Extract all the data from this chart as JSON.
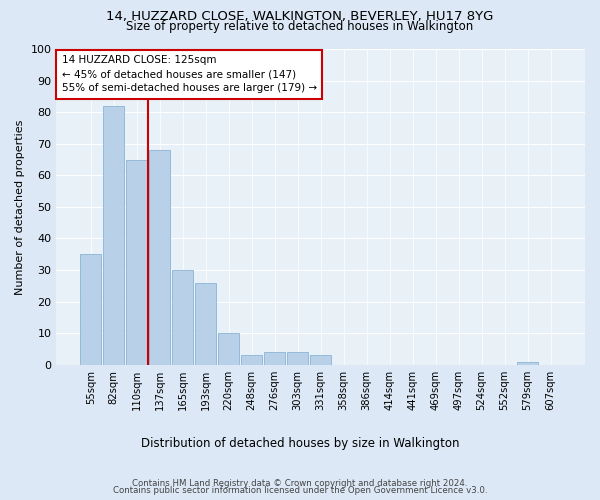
{
  "title": "14, HUZZARD CLOSE, WALKINGTON, BEVERLEY, HU17 8YG",
  "subtitle": "Size of property relative to detached houses in Walkington",
  "xlabel": "Distribution of detached houses by size in Walkington",
  "ylabel": "Number of detached properties",
  "bar_labels": [
    "55sqm",
    "82sqm",
    "110sqm",
    "137sqm",
    "165sqm",
    "193sqm",
    "220sqm",
    "248sqm",
    "276sqm",
    "303sqm",
    "331sqm",
    "358sqm",
    "386sqm",
    "414sqm",
    "441sqm",
    "469sqm",
    "497sqm",
    "524sqm",
    "552sqm",
    "579sqm",
    "607sqm"
  ],
  "bar_values": [
    35,
    82,
    65,
    68,
    30,
    26,
    10,
    3,
    4,
    4,
    3,
    0,
    0,
    0,
    0,
    0,
    0,
    0,
    0,
    1,
    0
  ],
  "bar_color": "#b8d0e8",
  "bar_edge_color": "#8ab4d4",
  "property_label": "14 HUZZARD CLOSE: 125sqm",
  "annotation_line1": "← 45% of detached houses are smaller (147)",
  "annotation_line2": "55% of semi-detached houses are larger (179) →",
  "vline_color": "#cc0000",
  "ylim": [
    0,
    100
  ],
  "yticks": [
    0,
    10,
    20,
    30,
    40,
    50,
    60,
    70,
    80,
    90,
    100
  ],
  "footnote1": "Contains HM Land Registry data © Crown copyright and database right 2024.",
  "footnote2": "Contains public sector information licensed under the Open Government Licence v3.0.",
  "bg_color": "#dce8f5",
  "plot_bg_color": "#e8f0f8"
}
